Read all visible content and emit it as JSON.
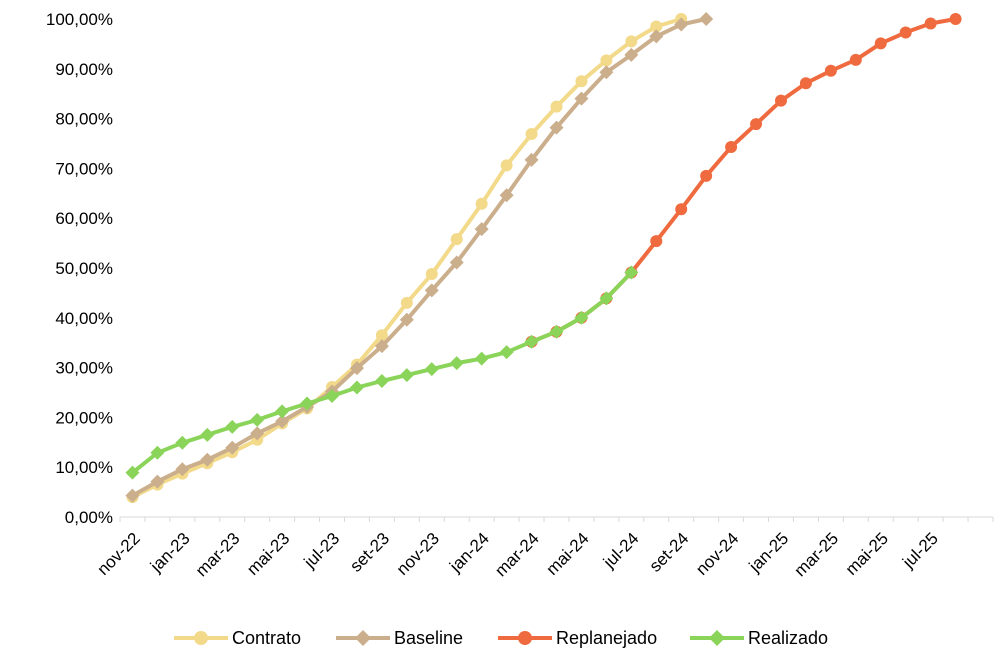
{
  "chart_data": {
    "type": "line",
    "x_tick_labels": [
      "nov-22",
      "jan-23",
      "mar-23",
      "mai-23",
      "jul-23",
      "set-23",
      "nov-23",
      "jan-24",
      "mar-24",
      "mai-24",
      "jul-24",
      "set-24",
      "nov-24",
      "jan-25",
      "mar-25",
      "mai-25",
      "jul-25"
    ],
    "y_ticks": [
      "0,00%",
      "10,00%",
      "20,00%",
      "30,00%",
      "40,00%",
      "50,00%",
      "60,00%",
      "70,00%",
      "80,00%",
      "90,00%",
      "100,00%"
    ],
    "ylim": [
      0,
      100
    ],
    "grid": false,
    "legend_position": "bottom",
    "series": [
      {
        "name": "Contrato",
        "color": "#F2DA8A",
        "marker": "circle",
        "start_index": 0,
        "values": [
          4.0,
          6.5,
          8.7,
          10.8,
          13.0,
          15.5,
          18.8,
          21.8,
          26.1,
          30.6,
          36.5,
          43.0,
          48.8,
          55.8,
          62.9,
          70.6,
          76.9,
          82.4,
          87.5,
          91.7,
          95.5,
          98.5,
          100.0
        ]
      },
      {
        "name": "Baseline",
        "color": "#CBAE8C",
        "marker": "diamond",
        "start_index": 0,
        "values": [
          4.3,
          7.1,
          9.6,
          11.5,
          13.9,
          16.8,
          19.2,
          22.1,
          25.2,
          29.9,
          34.3,
          39.6,
          45.5,
          51.1,
          57.8,
          64.6,
          71.7,
          78.2,
          84.0,
          89.3,
          92.8,
          96.5,
          98.9,
          100.0
        ]
      },
      {
        "name": "Replanejado",
        "color": "#EF6B3F",
        "marker": "circle",
        "start_index": 16,
        "values": [
          35.2,
          37.2,
          40.0,
          43.9,
          49.1,
          55.4,
          61.8,
          68.5,
          74.3,
          78.9,
          83.6,
          87.1,
          89.6,
          91.8,
          95.1,
          97.3,
          99.1,
          100.0
        ]
      },
      {
        "name": "Realizado",
        "color": "#8BD45A",
        "marker": "diamond",
        "start_index": 0,
        "values": [
          8.9,
          12.9,
          14.9,
          16.5,
          18.1,
          19.5,
          21.2,
          22.8,
          24.3,
          26.0,
          27.3,
          28.5,
          29.7,
          30.9,
          31.8,
          33.1,
          35.2,
          37.2,
          40.0,
          43.9,
          49.1
        ]
      }
    ]
  }
}
